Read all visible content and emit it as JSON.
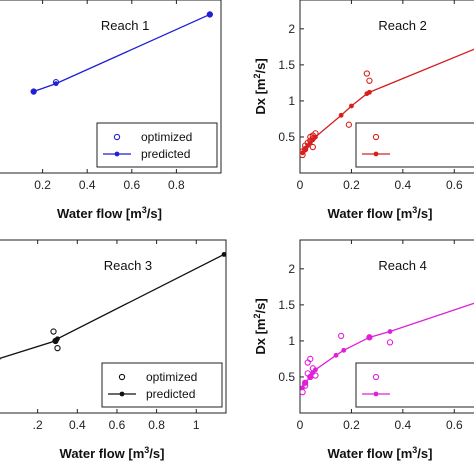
{
  "chart_data": [
    {
      "type": "scatter",
      "title": "Reach 1",
      "xlabel": "Water flow [m³/s]",
      "ylabel": "",
      "xlim": [
        0,
        1.0
      ],
      "ylim": [
        0,
        2.4
      ],
      "xticks": [
        0.2,
        0.4,
        0.6,
        0.8
      ],
      "xtick_labels": [
        "0.2",
        "0.4",
        "0.6",
        "0.8"
      ],
      "yticks": [],
      "ytick_labels": [],
      "grid": false,
      "legend": "bottom-right",
      "color": "#1f1fd6",
      "series": [
        {
          "name": "optimized",
          "style": "open-circles",
          "x": [
            0.16,
            0.26,
            0.95
          ],
          "y": [
            1.13,
            1.26,
            2.2
          ]
        },
        {
          "name": "predicted",
          "style": "line-dots",
          "x": [
            0.16,
            0.26,
            0.95
          ],
          "y": [
            1.13,
            1.24,
            2.2
          ]
        }
      ]
    },
    {
      "type": "scatter",
      "title": "Reach 2",
      "xlabel": "Water flow [m³/s]",
      "ylabel": "Dx [m²/s]",
      "xlim": [
        0,
        0.7
      ],
      "ylim": [
        0,
        2.4
      ],
      "xticks": [
        0,
        0.2,
        0.4,
        0.6
      ],
      "xtick_labels": [
        "0",
        "0.2",
        "0.4",
        "0.6"
      ],
      "yticks": [
        0.5,
        1,
        1.5,
        2
      ],
      "ytick_labels": [
        "0.5",
        "1",
        "1.5",
        "2"
      ],
      "grid": false,
      "legend": "bottom-right",
      "color": "#d62020",
      "series": [
        {
          "name": "",
          "style": "open-circles",
          "x": [
            0.01,
            0.01,
            0.02,
            0.03,
            0.04,
            0.04,
            0.05,
            0.05,
            0.06,
            0.19,
            0.26,
            0.27,
            0.05,
            0.02
          ],
          "y": [
            0.25,
            0.3,
            0.38,
            0.42,
            0.45,
            0.5,
            0.52,
            0.36,
            0.55,
            0.67,
            1.38,
            1.28,
            0.48,
            0.33
          ]
        },
        {
          "name": "",
          "style": "line-dots",
          "x": [
            0.01,
            0.02,
            0.03,
            0.04,
            0.05,
            0.06,
            0.16,
            0.2,
            0.26,
            0.27,
            0.7
          ],
          "y": [
            0.28,
            0.33,
            0.38,
            0.42,
            0.46,
            0.5,
            0.8,
            0.93,
            1.1,
            1.12,
            1.75
          ]
        }
      ]
    },
    {
      "type": "scatter",
      "title": "Reach 3",
      "xlabel": "Water flow [m³/s]",
      "ylabel": "",
      "xlim": [
        0,
        1.15
      ],
      "ylim": [
        0,
        2.4
      ],
      "xticks": [
        0.2,
        0.4,
        0.6,
        0.8,
        1
      ],
      "xtick_labels": [
        ".2",
        "0.4",
        "0.6",
        "0.8",
        "1"
      ],
      "yticks": [],
      "ytick_labels": [],
      "grid": false,
      "legend": "bottom-right",
      "color": "#111111",
      "series": [
        {
          "name": "optimized",
          "style": "open-circles",
          "x": [
            0.28,
            0.29,
            0.3
          ],
          "y": [
            1.13,
            1.0,
            0.9
          ]
        },
        {
          "name": "predicted",
          "style": "line-dots",
          "x": [
            0.0,
            0.29,
            0.3,
            1.14
          ],
          "y": [
            0.75,
            1.0,
            1.03,
            2.2
          ]
        }
      ]
    },
    {
      "type": "scatter",
      "title": "Reach 4",
      "xlabel": "Water flow [m³/s]",
      "ylabel": "Dx [m²/s]",
      "xlim": [
        0,
        0.7
      ],
      "ylim": [
        0,
        2.4
      ],
      "xticks": [
        0,
        0.2,
        0.4,
        0.6
      ],
      "xtick_labels": [
        "0",
        "0.2",
        "0.4",
        "0.6"
      ],
      "yticks": [
        0.5,
        1,
        1.5,
        2
      ],
      "ytick_labels": [
        "0.5",
        "1",
        "1.5",
        "2"
      ],
      "grid": false,
      "legend": "bottom-right",
      "color": "#e020d8",
      "series": [
        {
          "name": "",
          "style": "open-circles",
          "x": [
            0.01,
            0.02,
            0.03,
            0.03,
            0.04,
            0.05,
            0.06,
            0.16,
            0.27,
            0.35,
            0.04,
            0.02
          ],
          "y": [
            0.29,
            0.42,
            0.55,
            0.7,
            0.5,
            0.62,
            0.52,
            1.07,
            1.05,
            0.98,
            0.75,
            0.38
          ]
        },
        {
          "name": "",
          "style": "line-dots",
          "x": [
            0.01,
            0.02,
            0.04,
            0.05,
            0.06,
            0.14,
            0.17,
            0.27,
            0.35,
            0.7
          ],
          "y": [
            0.35,
            0.42,
            0.5,
            0.56,
            0.6,
            0.8,
            0.87,
            1.05,
            1.13,
            1.55
          ]
        }
      ]
    }
  ]
}
